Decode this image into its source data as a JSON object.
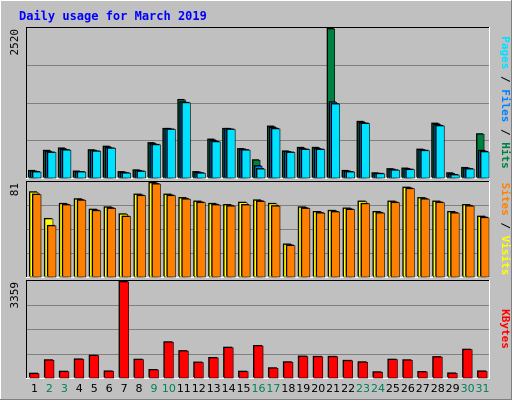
{
  "title": "Daily usage for March 2019",
  "colors": {
    "background": "#C0C0C0",
    "title": "#0000FF",
    "hits": "#008040",
    "files": "#0080FF",
    "pages": "#00E0FF",
    "visits": "#FFFF00",
    "sites": "#FF8000",
    "kbytes": "#FF0000",
    "weekend_label": "#00805C",
    "weekday_label": "#000000"
  },
  "chart_data": [
    {
      "type": "bar",
      "name": "hits-files-pages",
      "y_axis_label": "2520",
      "ylim": [
        0,
        2520
      ],
      "right_labels": [
        {
          "text": "Pages",
          "color": "#00E0FF"
        },
        {
          "text": " / ",
          "color": "#000000"
        },
        {
          "text": "Files",
          "color": "#0080FF"
        },
        {
          "text": " / ",
          "color": "#000000"
        },
        {
          "text": "Hits",
          "color": "#008040"
        }
      ],
      "categories": [
        "1",
        "2",
        "3",
        "4",
        "5",
        "6",
        "7",
        "8",
        "9",
        "10",
        "11",
        "12",
        "13",
        "14",
        "15",
        "16",
        "17",
        "18",
        "19",
        "20",
        "21",
        "22",
        "23",
        "24",
        "25",
        "26",
        "27",
        "28",
        "29",
        "30",
        "31"
      ],
      "series": [
        {
          "name": "Hits",
          "values": [
            120,
            460,
            500,
            110,
            470,
            530,
            100,
            130,
            590,
            830,
            1320,
            100,
            650,
            830,
            490,
            300,
            870,
            450,
            510,
            510,
            2520,
            120,
            950,
            80,
            150,
            160,
            480,
            920,
            80,
            170,
            740
          ]
        },
        {
          "name": "Files",
          "values": [
            110,
            440,
            480,
            100,
            460,
            510,
            90,
            120,
            570,
            830,
            1280,
            90,
            630,
            830,
            480,
            200,
            850,
            440,
            490,
            490,
            1280,
            110,
            930,
            70,
            140,
            150,
            470,
            900,
            60,
            160,
            460
          ]
        },
        {
          "name": "Pages",
          "values": [
            100,
            430,
            470,
            100,
            450,
            500,
            80,
            110,
            560,
            820,
            1270,
            80,
            610,
            820,
            470,
            150,
            830,
            430,
            480,
            480,
            1250,
            100,
            920,
            70,
            130,
            140,
            460,
            880,
            50,
            150,
            440
          ]
        }
      ]
    },
    {
      "type": "bar",
      "name": "visits-sites",
      "y_axis_label": "81",
      "ylim": [
        0,
        81
      ],
      "right_labels": [
        {
          "text": "Sites",
          "color": "#FF8000"
        },
        {
          "text": " / ",
          "color": "#000000"
        },
        {
          "text": "Visits",
          "color": "#FFFF00"
        }
      ],
      "categories": [
        "1",
        "2",
        "3",
        "4",
        "5",
        "6",
        "7",
        "8",
        "9",
        "10",
        "11",
        "12",
        "13",
        "14",
        "15",
        "16",
        "17",
        "18",
        "19",
        "20",
        "21",
        "22",
        "23",
        "24",
        "25",
        "26",
        "27",
        "28",
        "29",
        "30",
        "31"
      ],
      "series": [
        {
          "name": "Visits",
          "values": [
            73,
            50,
            63,
            67,
            58,
            60,
            54,
            71,
            81,
            71,
            68,
            65,
            63,
            62,
            64,
            66,
            63,
            28,
            60,
            56,
            57,
            59,
            65,
            56,
            65,
            77,
            68,
            65,
            56,
            62,
            52
          ]
        },
        {
          "name": "Sites",
          "values": [
            71,
            44,
            62,
            66,
            57,
            59,
            52,
            70,
            80,
            70,
            67,
            64,
            62,
            61,
            62,
            65,
            61,
            27,
            59,
            55,
            56,
            58,
            63,
            55,
            64,
            76,
            67,
            64,
            55,
            61,
            51
          ]
        }
      ]
    },
    {
      "type": "bar",
      "name": "kbytes",
      "y_axis_label": "3359",
      "ylim": [
        0,
        3359
      ],
      "right_labels": [
        {
          "text": "KBytes",
          "color": "#FF0000"
        }
      ],
      "categories": [
        "1",
        "2",
        "3",
        "4",
        "5",
        "6",
        "7",
        "8",
        "9",
        "10",
        "11",
        "12",
        "13",
        "14",
        "15",
        "16",
        "17",
        "18",
        "19",
        "20",
        "21",
        "22",
        "23",
        "24",
        "25",
        "26",
        "27",
        "28",
        "29",
        "30",
        "31"
      ],
      "series": [
        {
          "name": "KBytes",
          "values": [
            150,
            620,
            220,
            650,
            780,
            230,
            3359,
            640,
            280,
            1250,
            940,
            540,
            700,
            1060,
            220,
            1120,
            340,
            550,
            750,
            740,
            740,
            600,
            550,
            200,
            640,
            620,
            210,
            730,
            160,
            990,
            230
          ]
        }
      ]
    }
  ],
  "weekend_days": [
    "2",
    "3",
    "9",
    "10",
    "16",
    "17",
    "23",
    "24",
    "30",
    "31"
  ]
}
